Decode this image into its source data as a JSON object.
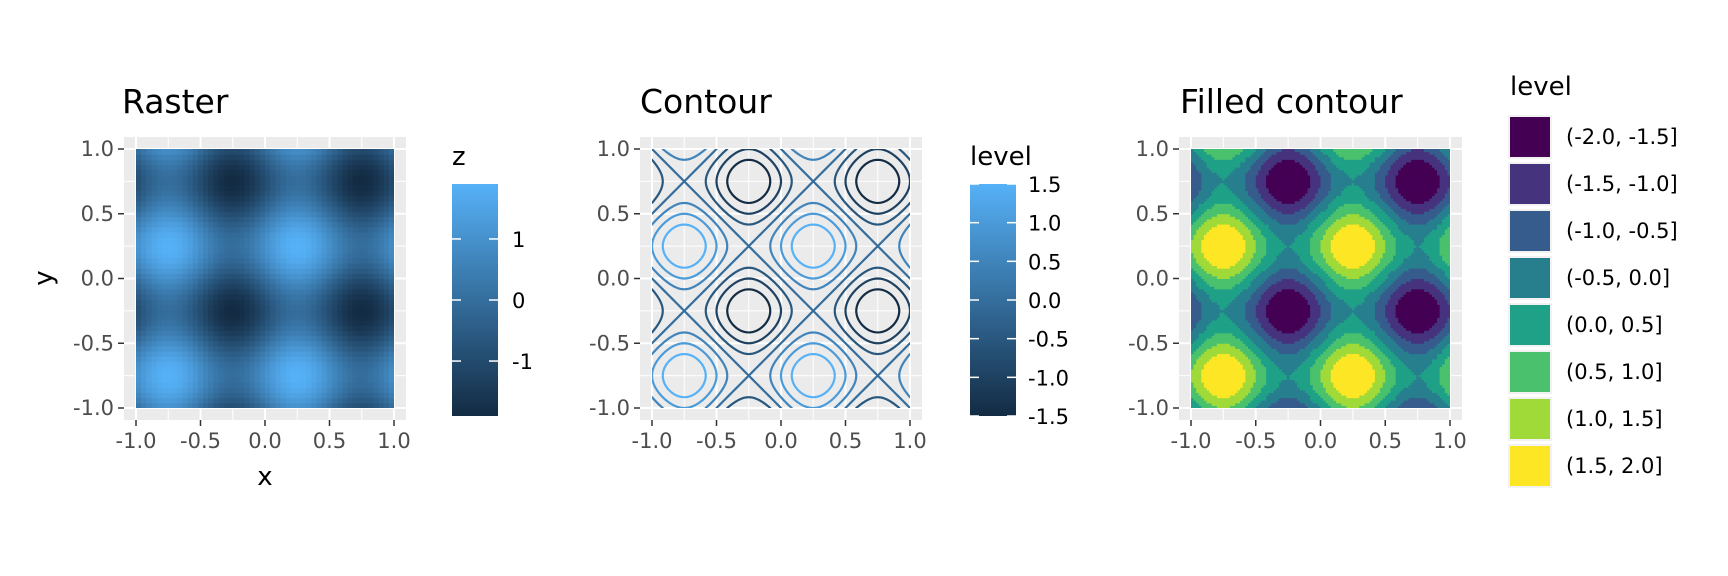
{
  "panels": {
    "raster": {
      "title": "Raster",
      "xlabel": "x",
      "ylabel": "y",
      "legend_title": "z"
    },
    "contour": {
      "title": "Contour",
      "legend_title": "level"
    },
    "filled": {
      "title": "Filled contour",
      "legend_title": "level"
    }
  },
  "colors": {
    "panel_background": "#ebebeb",
    "grid": "#ffffff",
    "gradient_low": "#132b43",
    "gradient_high": "#56b1f7",
    "viridis": [
      "#440154",
      "#46337e",
      "#365c8d",
      "#277f8e",
      "#1fa187",
      "#4ac16d",
      "#a0da39",
      "#fde725"
    ]
  },
  "chart_data": [
    {
      "type": "heatmap",
      "title": "Raster",
      "xlabel": "x",
      "ylabel": "y",
      "xlim": [
        -1.0,
        1.0
      ],
      "ylim": [
        -1.0,
        1.0
      ],
      "x_ticks": [
        "-1.0",
        "-0.5",
        "0.0",
        "0.5",
        "1.0"
      ],
      "y_ticks": [
        "1.0",
        "0.5",
        "0.0",
        "-0.5",
        "-1.0"
      ],
      "function": "z = sin(2*pi*x) + sin(2*pi*y)",
      "z_range": [
        -2,
        2
      ],
      "legend": {
        "title": "z",
        "type": "colorbar",
        "breaks": [
          "1",
          "0",
          "-1"
        ]
      },
      "grid": true
    },
    {
      "type": "line",
      "title": "Contour",
      "xlim": [
        -1.0,
        1.0
      ],
      "ylim": [
        -1.0,
        1.0
      ],
      "x_ticks": [
        "-1.0",
        "-0.5",
        "0.0",
        "0.5",
        "1.0"
      ],
      "y_ticks": [
        "1.0",
        "0.5",
        "0.0",
        "-0.5",
        "-1.0"
      ],
      "function": "z = sin(2*pi*x) + sin(2*pi*y)",
      "levels": [
        -1.5,
        -1.0,
        -0.5,
        0.0,
        0.5,
        1.0,
        1.5
      ],
      "legend": {
        "title": "level",
        "type": "colorbar",
        "breaks": [
          "1.5",
          "1.0",
          "0.5",
          "0.0",
          "-0.5",
          "-1.0",
          "-1.5"
        ]
      },
      "grid": true
    },
    {
      "type": "heatmap",
      "title": "Filled contour",
      "xlim": [
        -1.0,
        1.0
      ],
      "ylim": [
        -1.0,
        1.0
      ],
      "x_ticks": [
        "-1.0",
        "-0.5",
        "0.0",
        "0.5",
        "1.0"
      ],
      "y_ticks": [
        "1.0",
        "0.5",
        "0.0",
        "-0.5",
        "-1.0"
      ],
      "function": "z = sin(2*pi*x) + sin(2*pi*y)",
      "bins": [
        [
          -2.0,
          -1.5
        ],
        [
          -1.5,
          -1.0
        ],
        [
          -1.0,
          -0.5
        ],
        [
          -0.5,
          0.0
        ],
        [
          0.0,
          0.5
        ],
        [
          0.5,
          1.0
        ],
        [
          1.0,
          1.5
        ],
        [
          1.5,
          2.0
        ]
      ],
      "legend": {
        "title": "level",
        "type": "discrete",
        "labels": [
          "(-2.0, -1.5]",
          "(-1.5, -1.0]",
          "(-1.0, -0.5]",
          "(-0.5, 0.0]",
          "(0.0, 0.5]",
          "(0.5, 1.0]",
          "(1.0, 1.5]",
          "(1.5, 2.0]"
        ]
      },
      "grid": true
    }
  ]
}
